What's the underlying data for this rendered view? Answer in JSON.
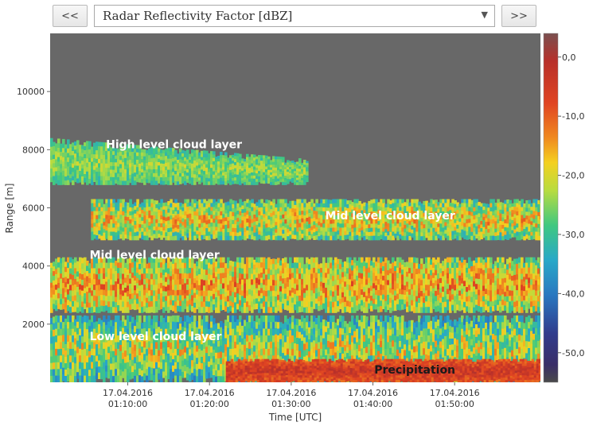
{
  "toolbar": {
    "prev_label": "<<",
    "next_label": ">>",
    "product_selected": "Radar Reflectivity Factor [dBZ]",
    "chevron_icon": "chevron-down-icon"
  },
  "chart_data": {
    "type": "heatmap",
    "title": "",
    "xlabel": "Time [UTC]",
    "ylabel": "Range [m]",
    "ylim": [
      0,
      12000
    ],
    "xlim": [
      "17.04.2016 01:00:30",
      "17.04.2016 02:00:30"
    ],
    "y_ticks": [
      2000,
      4000,
      6000,
      8000,
      10000
    ],
    "x_ticks": [
      {
        "value": "17.04.2016 01:10:00",
        "line1": "17.04.2016",
        "line2": "01:10:00"
      },
      {
        "value": "17.04.2016 01:20:00",
        "line1": "17.04.2016",
        "line2": "01:20:00"
      },
      {
        "value": "17.04.2016 01:30:00",
        "line1": "17.04.2016",
        "line2": "01:30:00"
      },
      {
        "value": "17.04.2016 01:40:00",
        "line1": "17.04.2016",
        "line2": "01:40:00"
      },
      {
        "value": "17.04.2016 01:50:00",
        "line1": "17.04.2016",
        "line2": "01:50:00"
      }
    ],
    "colorbar": {
      "label": "Radar Reflectivity Factor [dBZ]",
      "range": [
        -55,
        4
      ],
      "ticks": [
        0,
        -10,
        -20,
        -30,
        -40,
        -50
      ],
      "tick_labels": [
        "0,0",
        "-10,0",
        "-20,0",
        "-30,0",
        "-40,0",
        "-50,0"
      ]
    },
    "background_color": "#686868",
    "annotations": [
      {
        "text": "High level cloud layer",
        "time": "01:07:20",
        "range": 8050,
        "color": "#ffffff"
      },
      {
        "text": "Mid level cloud layer",
        "time": "01:34:10",
        "range": 5600,
        "color": "#ffffff"
      },
      {
        "text": "Mid level cloud layer",
        "time": "01:05:20",
        "range": 4250,
        "color": "#ffffff"
      },
      {
        "text": "Low level cloud layer",
        "time": "01:05:20",
        "range": 1450,
        "color": "#ffffff"
      },
      {
        "text": "Precipitation",
        "time": "01:40:10",
        "range": 300,
        "color": "#1a1a1a"
      }
    ],
    "layers": [
      {
        "name": "High level cloud layer",
        "start": "01:00:30",
        "end": "01:32:00",
        "base": 6800,
        "top": 8400,
        "dbz_min": -32,
        "dbz_max": -18
      },
      {
        "name": "Mid level cloud layer (upper)",
        "start": "01:05:30",
        "end": "02:00:30",
        "base": 4900,
        "top": 6300,
        "dbz_min": -35,
        "dbz_max": -8
      },
      {
        "name": "Mid level cloud layer (lower)",
        "start": "01:00:30",
        "end": "02:00:30",
        "base": 2400,
        "top": 4300,
        "dbz_min": -32,
        "dbz_max": -5
      },
      {
        "name": "Low level cloud layer",
        "start": "01:00:30",
        "end": "02:00:30",
        "base": 0,
        "top": 2300,
        "dbz_min": -40,
        "dbz_max": -10
      },
      {
        "name": "Precipitation",
        "start": "01:22:00",
        "end": "02:00:30",
        "base": 0,
        "top": 800,
        "dbz_min": -12,
        "dbz_max": 0
      }
    ]
  }
}
